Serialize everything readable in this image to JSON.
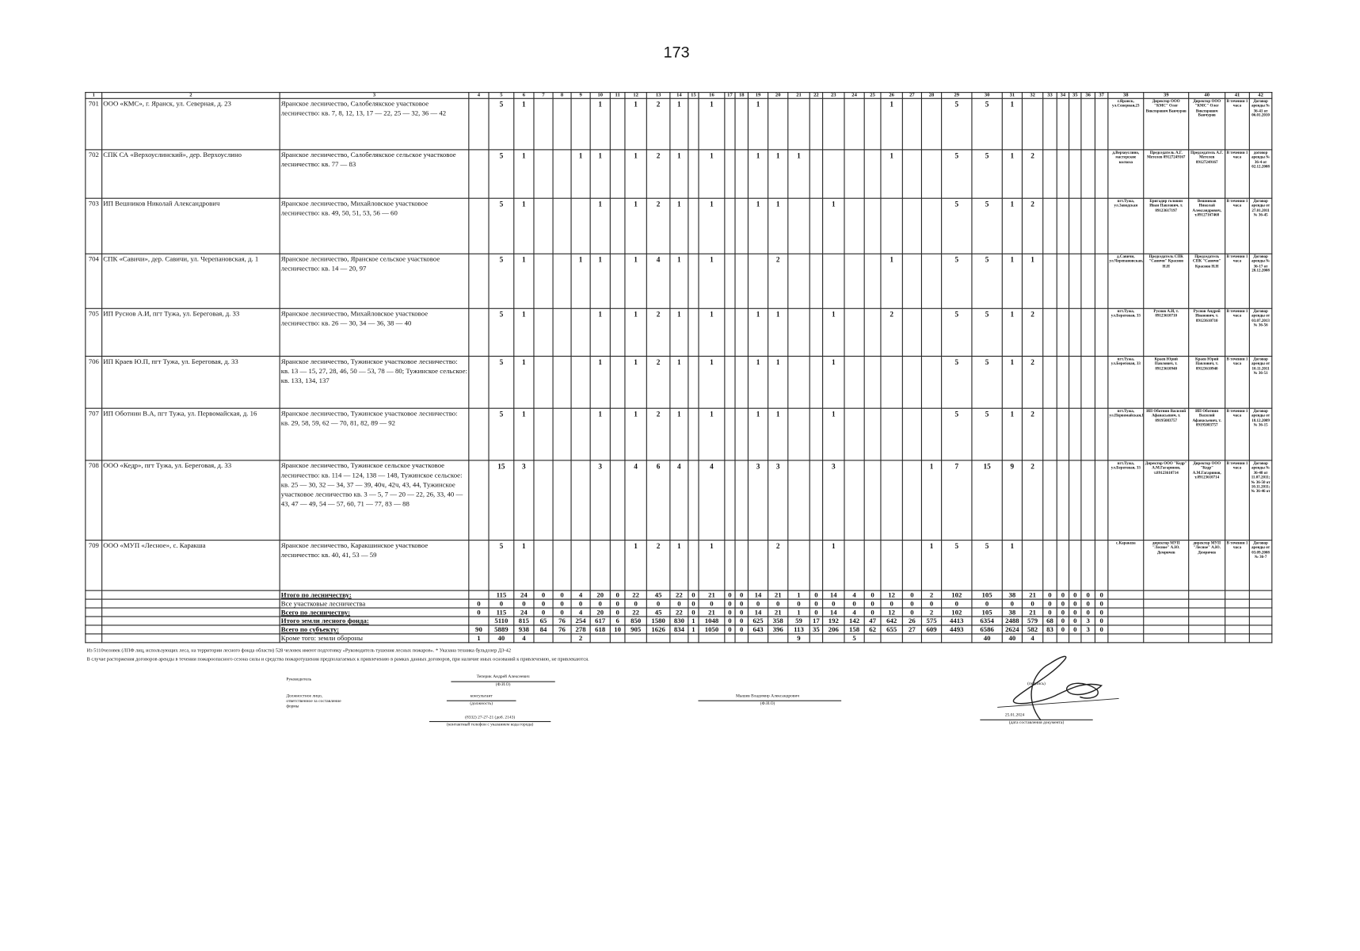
{
  "page_number": "173",
  "header": [
    "1",
    "2",
    "3",
    "4",
    "5",
    "6",
    "7",
    "8",
    "9",
    "10",
    "11",
    "12",
    "13",
    "14",
    "15",
    "16",
    "17",
    "18",
    "19",
    "20",
    "21",
    "22",
    "23",
    "24",
    "25",
    "26",
    "27",
    "28",
    "29",
    "30",
    "31",
    "32",
    "33",
    "34",
    "35",
    "36",
    "37",
    "38",
    "39",
    "40",
    "41",
    "42"
  ],
  "rows": [
    {
      "id": "701",
      "org": "ООО «КМС», г. Яранск, ул. Северная, д. 23",
      "area": "Яранское лесничество, Салобелякское участковое лесничество: кв. 7, 8, 12, 13, 17 — 22, 25 — 32, 36 — 42",
      "cells": {
        "5": "5",
        "6": "1",
        "10": "1",
        "12": "1",
        "13": "2",
        "14": "1",
        "16": "1",
        "19": "1",
        "26": "1",
        "29": "5",
        "30": "5",
        "31": "1"
      },
      "c38": "г.Яранск, ул.Северная,23",
      "c39": "Директор ООО \"КМС\" Олег Викторович Ванчуров",
      "c40": "Директор ООО \"КМС\" Олег Викторович Ванчуров",
      "c41": "В течении 1 часа",
      "c42": "Договор аренды № 36-41 от 06.01.2010"
    },
    {
      "id": "702",
      "org": "СПК СА «Верхоуслинский», дер. Верхоуслино",
      "area": "Яранское лесничество, Салобелякское сельское участковое лесничество: кв. 77 — 83",
      "cells": {
        "5": "5",
        "6": "1",
        "9": "1",
        "10": "1",
        "12": "1",
        "13": "2",
        "14": "1",
        "16": "1",
        "19": "1",
        "20": "1",
        "21": "1",
        "26": "1",
        "29": "5",
        "30": "5",
        "31": "1",
        "32": "2"
      },
      "c38": "д.Верхоуслино, мастерские колхоза",
      "c39": "Председатель А.Г. Метелев 89127249167",
      "c40": "Председатель А.Г. Метелев 89127249167",
      "c41": "В течении 1 часа",
      "c42": "договор аренды № 36-4 от 02.12.2008"
    },
    {
      "id": "703",
      "org": "ИП Вешников Николай Александрович",
      "area": "Яранское лесничество, Михайловское участковое лесничество: кв. 49, 50, 51, 53, 56 — 60",
      "cells": {
        "5": "5",
        "6": "1",
        "10": "1",
        "12": "1",
        "13": "2",
        "14": "1",
        "16": "1",
        "19": "1",
        "20": "1",
        "23": "1",
        "29": "5",
        "30": "5",
        "31": "1",
        "32": "2"
      },
      "c38": "пгт.Тужа, ул.Заводская",
      "c39": "Бригадир головин Иван Павлович, т. 89123617197",
      "c40": "Вешников Николай Александрович, т.89127167468",
      "c41": "В течении 1 часа",
      "c42": "Договор аренды от 27.01.2011 № 36-45"
    },
    {
      "id": "704",
      "org": "СПК «Савичи», дер. Савичи, ул. Черепановская, д. 1",
      "area": "Яранское лесничество, Яранское сельское участковое лесничество: кв. 14 — 20, 97",
      "cells": {
        "5": "5",
        "6": "1",
        "9": "1",
        "10": "1",
        "12": "1",
        "13": "4",
        "14": "1",
        "16": "1",
        "20": "2",
        "26": "1",
        "29": "5",
        "30": "5",
        "31": "1",
        "32": "1"
      },
      "c38": "д.Савичи, ул.Черепановская,1",
      "c39": "Председатель СПК \"Савичи\" Краснов Н.Н",
      "c40": "Председатель СПК \"Савичи\" Краснов Н.Н",
      "c41": "В течении 1 часа",
      "c42": "Договор аренды № 36-17 от 28.12.2008"
    },
    {
      "id": "705",
      "org": "ИП Руснов А.И, пгт Тужа, ул. Береговая, д. 33",
      "area": "Яранское лесничество, Михайловское участковое лесничество: кв. 26 — 30, 34 — 36, 38 — 40",
      "cells": {
        "5": "5",
        "6": "1",
        "10": "1",
        "12": "1",
        "13": "2",
        "14": "1",
        "16": "1",
        "19": "1",
        "20": "1",
        "23": "1",
        "26": "2",
        "29": "5",
        "30": "5",
        "31": "1",
        "32": "2"
      },
      "c38": "пгт.Тужа, ул.Береговая, 33",
      "c39": "Руснов А.И, т. 89123610710",
      "c40": "Руснов Андрей Иванович, т. 89123610710",
      "c41": "В течении 1 часа",
      "c42": "Договор аренды от 03.07.2013 № 36-56"
    },
    {
      "id": "706",
      "org": "ИП Краев Ю.П, пгт Тужа, ул. Береговая, д. 33",
      "area": "Яранское лесничество, Тужинское участковое лесничество: кв. 13 — 15, 27, 28, 46, 50 — 53, 78 — 80; Тужинское сельское: кв. 133, 134, 137",
      "cells": {
        "5": "5",
        "6": "1",
        "10": "1",
        "12": "1",
        "13": "2",
        "14": "1",
        "16": "1",
        "19": "1",
        "20": "1",
        "23": "1",
        "29": "5",
        "30": "5",
        "31": "1",
        "32": "2"
      },
      "c38": "пгт.Тужа, ул.Береговая, 33",
      "c39": "Краев Юрий Павлович, т. 89123610940",
      "c40": "Краев Юрий Павлович, т. 89123610940",
      "c41": "В течении 1 часа",
      "c42": "Договор аренды от 10.11.2011 № 36-51"
    },
    {
      "id": "707",
      "org": "ИП Оботнин В.А, пгт Тужа, ул. Первомайская, д. 16",
      "area": "Яранское лесничество, Тужинское участковое лесничество: кв. 29, 58, 59, 62 — 70, 81, 82, 89 — 92",
      "cells": {
        "5": "5",
        "6": "1",
        "10": "1",
        "12": "1",
        "13": "2",
        "14": "1",
        "16": "1",
        "19": "1",
        "20": "1",
        "23": "1",
        "29": "5",
        "30": "5",
        "31": "1",
        "32": "2"
      },
      "c38": "пгт.Тужа, ул.Первомайская,16",
      "c39": "ИП Оботнин Василий Афанасьевич, т. 89195083757",
      "c40": "ИП Оботнин Василий Афанасьевич, т. 89195083757",
      "c41": "В течении 1 часа",
      "c42": "Договор аренды от 18.12.2009 № 36-15"
    },
    {
      "id": "708",
      "org": "ООО «Кедр», пгт Тужа, ул. Береговая, д. 33",
      "area": "Яранское лесничество, Тужинское сельское участковое лесничество: кв. 114 — 124, 138 — 148, Тужинское сельское: кв. 25 — 30, 32 — 34, 37 — 39, 40ч, 42ч, 43, 44, Тужинское участковое лесничество кв. 3 — 5, 7 — 20 — 22, 26, 33, 40 — 43, 47 — 49, 54 — 57, 60, 71 — 77, 83 — 88",
      "cells": {
        "5": "15",
        "6": "3",
        "10": "3",
        "12": "4",
        "13": "6",
        "14": "4",
        "16": "4",
        "19": "3",
        "20": "3",
        "23": "3",
        "28": "1",
        "29": "7",
        "30": "15",
        "31": "9",
        "32": "2"
      },
      "c38": "пгт.Тужа, ул.Береговая, 33",
      "c39": "Директор ООО \"Кедр\" А.М.Гагаринов, т.89123610714",
      "c40": "Директор ООО \"Кедр\" А.М.Гагаринов, т.89123610714",
      "c41": "В течении 1 часа",
      "c42": "Договор аренды № 36-48 от 11.07.2011; № 36-50 от 10.11.2011; № 36-46 от"
    },
    {
      "id": "709",
      "org": "ООО «МУП «Лесное», с. Каракша",
      "area": "Яранское лесничество, Каракшинское участковое лесничество: кв. 40, 41, 53 — 59",
      "cells": {
        "5": "5",
        "6": "1",
        "12": "1",
        "13": "2",
        "14": "1",
        "16": "1",
        "20": "2",
        "23": "1",
        "28": "1",
        "29": "5",
        "30": "5",
        "31": "1"
      },
      "c38": "с.Каракша",
      "c39": "директор МУП \"Лесное\" А.Ю. Демричев",
      "c40": "директор МУП \"Лесное\" А.Ю. Демричев",
      "c41": "В течении 1 часа",
      "c42": "Договор аренды от 03.09.2008 № 36-7"
    }
  ],
  "totals": [
    {
      "label": "Итого по лесничеству:",
      "bold": true,
      "values": [
        "",
        "115",
        "24",
        "0",
        "0",
        "4",
        "20",
        "0",
        "22",
        "45",
        "22",
        "0",
        "21",
        "0",
        "0",
        "14",
        "21",
        "1",
        "0",
        "14",
        "4",
        "0",
        "12",
        "0",
        "2",
        "102",
        "105",
        "38",
        "21",
        "0",
        "0",
        "0",
        "0",
        "0"
      ]
    },
    {
      "label": "Все участковые лесничества",
      "bold": false,
      "values": [
        "0",
        "0",
        "0",
        "0",
        "0",
        "0",
        "0",
        "0",
        "0",
        "0",
        "0",
        "0",
        "0",
        "0",
        "0",
        "0",
        "0",
        "0",
        "0",
        "0",
        "0",
        "0",
        "0",
        "0",
        "0",
        "0",
        "0",
        "0",
        "0",
        "0",
        "0",
        "0",
        "0",
        "0"
      ]
    },
    {
      "label": "Всего по лесничеству:",
      "bold": true,
      "values": [
        "0",
        "115",
        "24",
        "0",
        "0",
        "4",
        "20",
        "0",
        "22",
        "45",
        "22",
        "0",
        "21",
        "0",
        "0",
        "14",
        "21",
        "1",
        "0",
        "14",
        "4",
        "0",
        "12",
        "0",
        "2",
        "102",
        "105",
        "38",
        "21",
        "0",
        "0",
        "0",
        "0",
        "0"
      ]
    },
    {
      "label": "Итого земли лесного фонда:",
      "bold": true,
      "values": [
        "",
        "5110",
        "815",
        "65",
        "76",
        "254",
        "617",
        "6",
        "850",
        "1580",
        "830",
        "1",
        "1048",
        "0",
        "0",
        "625",
        "358",
        "59",
        "17",
        "192",
        "142",
        "47",
        "642",
        "26",
        "575",
        "4413",
        "6354",
        "2488",
        "579",
        "68",
        "0",
        "0",
        "3",
        "0"
      ]
    },
    {
      "label": "Всего по субъекту:",
      "bold": true,
      "values": [
        "90",
        "5889",
        "938",
        "84",
        "76",
        "278",
        "618",
        "10",
        "905",
        "1626",
        "834",
        "1",
        "1050",
        "0",
        "0",
        "643",
        "396",
        "113",
        "35",
        "206",
        "158",
        "62",
        "655",
        "27",
        "609",
        "4493",
        "6586",
        "2624",
        "582",
        "83",
        "0",
        "0",
        "3",
        "0"
      ]
    },
    {
      "label": "Кроме того: земли обороны",
      "bold": false,
      "values": [
        "1",
        "40",
        "4",
        "",
        "",
        "2",
        "",
        "",
        "",
        "",
        "",
        "",
        "",
        "",
        "",
        "",
        "",
        "9",
        "",
        "",
        "5",
        "",
        "",
        "",
        "",
        "",
        "40",
        "40",
        "4",
        "",
        "",
        "",
        "",
        ""
      ]
    }
  ],
  "notes": [
    "Из 5110человек (ЛПФ лиц, использующих леса, на территории лесного фонда области) 528 человек имеют подготовку «Руководитель тушения лесных пожаров». * Указана техника бульдозер ДЗ-42",
    "В случае расторжения договоров аренды в течении пожароопасного сезона силы и средства пожаротушения предполагаемых к привлечению в рамках данных договоров, при наличие иных оснований к привлечению, не привлекаются."
  ],
  "signatures": {
    "head_label": "Руководитель",
    "head_name": "Теперик Андрей Алексеевич",
    "fio_caption": "(Ф.И.О)",
    "resp_label": "Должностное лицо, ответственное за составление формы",
    "resp_position": "консультант",
    "position_caption": "(должность)",
    "phone": "(8332) 27-27-21 (доб. 2143)",
    "phone_caption": "(контактный телефон с указанием кода города)",
    "resp_name": "Мышев Владимир Александрович",
    "resp_fio_caption": "(Ф.И.О)",
    "signature_caption": "(подпись)",
    "date": "25.01.2024",
    "date_caption": "(дата составления документа)"
  }
}
